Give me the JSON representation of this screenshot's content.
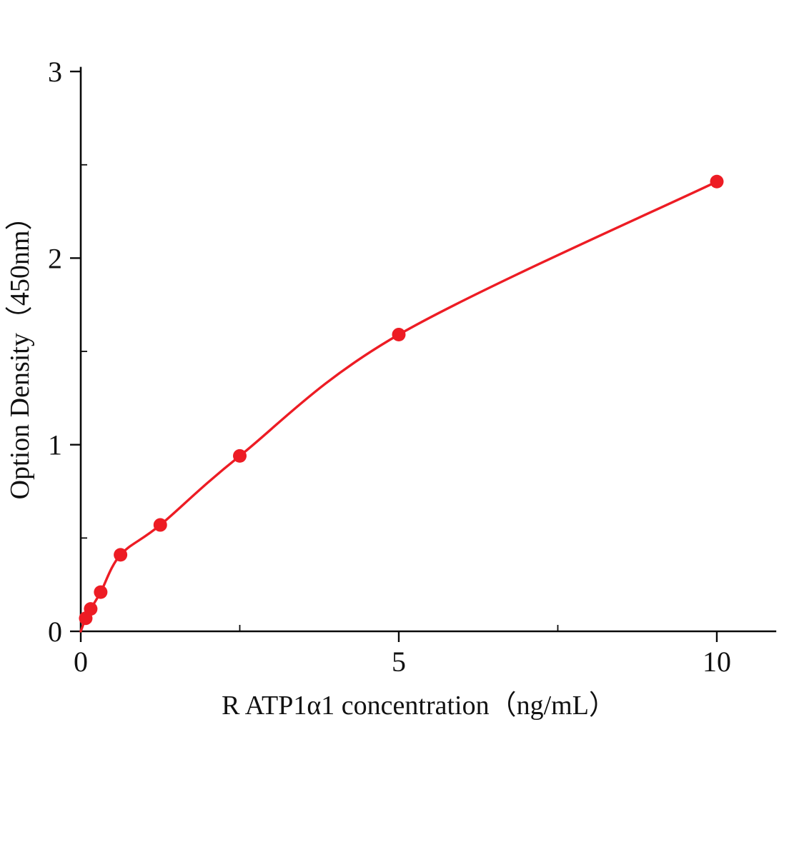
{
  "chart_data": {
    "type": "scatter",
    "title": "",
    "xlabel": "R ATP1α1  concentration（ng/mL）",
    "ylabel": "Option Density（450nm）",
    "x": [
      0.078,
      0.156,
      0.313,
      0.625,
      1.25,
      2.5,
      5,
      10
    ],
    "y": [
      0.07,
      0.12,
      0.21,
      0.41,
      0.57,
      0.94,
      1.59,
      2.41
    ],
    "curve_starts_at_origin": true,
    "xlim": [
      0,
      10.92
    ],
    "ylim": [
      0,
      3.02
    ],
    "x_ticks": [
      0,
      5,
      10
    ],
    "y_ticks": [
      0,
      1,
      2,
      3
    ],
    "x_minor_ticks": [
      2.5,
      7.5
    ],
    "y_minor_ticks": [
      0.5,
      1.5,
      2.5
    ],
    "grid": false,
    "legend": false,
    "colors": {
      "series": "#ed1c24",
      "axis": "#0a0a0a",
      "background": "#ffffff"
    }
  }
}
